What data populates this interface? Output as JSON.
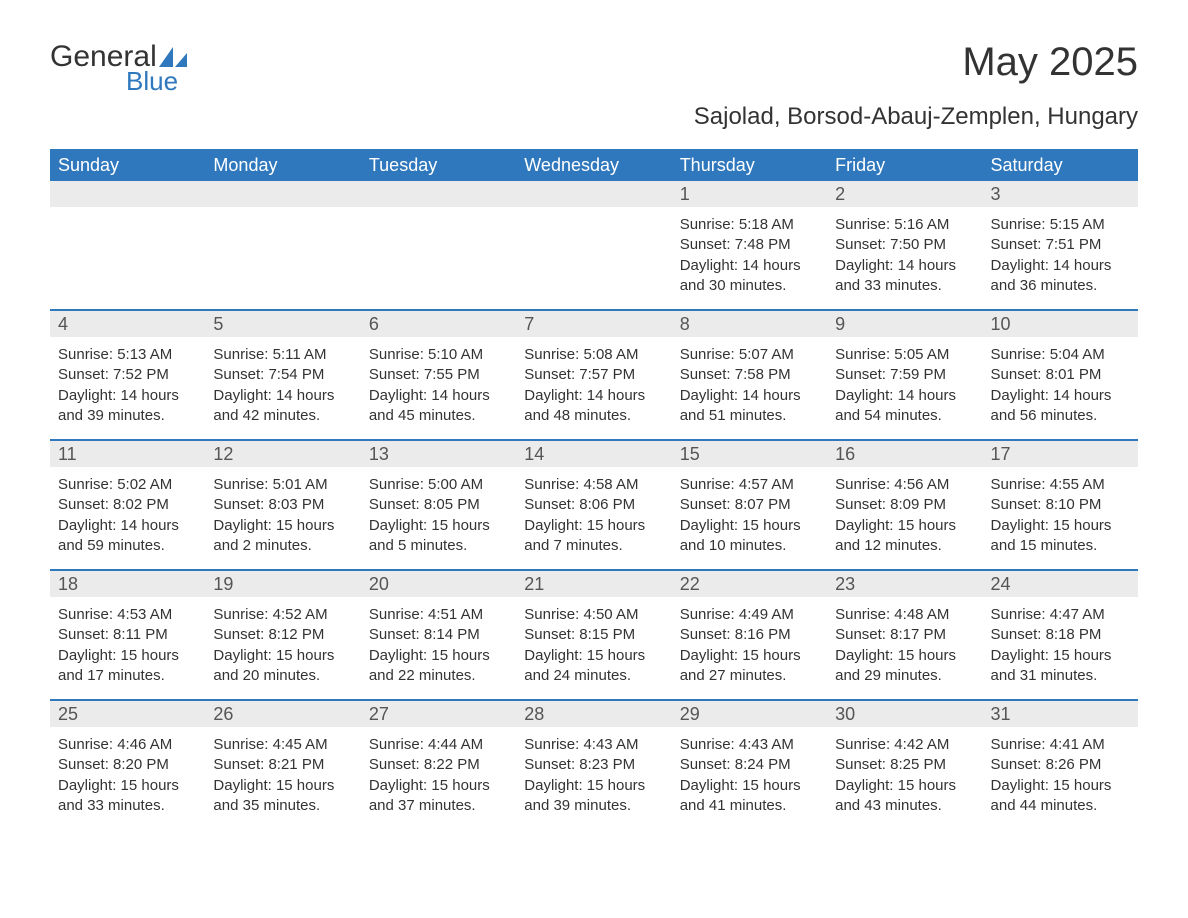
{
  "logo": {
    "text_general": "General",
    "text_blue": "Blue",
    "sail_color": "#2f78bd"
  },
  "title": "May 2025",
  "subtitle": "Sajolad, Borsod-Abauj-Zemplen, Hungary",
  "colors": {
    "header_bg": "#2f78bd",
    "header_text": "#ffffff",
    "daynum_bg": "#ebebeb",
    "daynum_text": "#555555",
    "body_text": "#333333",
    "week_divider": "#2f78bd",
    "page_bg": "#ffffff"
  },
  "fontsize": {
    "title": 40,
    "subtitle": 24,
    "weekday": 18,
    "daynum": 18,
    "body": 15
  },
  "weekdays": [
    "Sunday",
    "Monday",
    "Tuesday",
    "Wednesday",
    "Thursday",
    "Friday",
    "Saturday"
  ],
  "days": [
    {
      "n": 1,
      "sunrise": "5:18 AM",
      "sunset": "7:48 PM",
      "daylight": "14 hours and 30 minutes."
    },
    {
      "n": 2,
      "sunrise": "5:16 AM",
      "sunset": "7:50 PM",
      "daylight": "14 hours and 33 minutes."
    },
    {
      "n": 3,
      "sunrise": "5:15 AM",
      "sunset": "7:51 PM",
      "daylight": "14 hours and 36 minutes."
    },
    {
      "n": 4,
      "sunrise": "5:13 AM",
      "sunset": "7:52 PM",
      "daylight": "14 hours and 39 minutes."
    },
    {
      "n": 5,
      "sunrise": "5:11 AM",
      "sunset": "7:54 PM",
      "daylight": "14 hours and 42 minutes."
    },
    {
      "n": 6,
      "sunrise": "5:10 AM",
      "sunset": "7:55 PM",
      "daylight": "14 hours and 45 minutes."
    },
    {
      "n": 7,
      "sunrise": "5:08 AM",
      "sunset": "7:57 PM",
      "daylight": "14 hours and 48 minutes."
    },
    {
      "n": 8,
      "sunrise": "5:07 AM",
      "sunset": "7:58 PM",
      "daylight": "14 hours and 51 minutes."
    },
    {
      "n": 9,
      "sunrise": "5:05 AM",
      "sunset": "7:59 PM",
      "daylight": "14 hours and 54 minutes."
    },
    {
      "n": 10,
      "sunrise": "5:04 AM",
      "sunset": "8:01 PM",
      "daylight": "14 hours and 56 minutes."
    },
    {
      "n": 11,
      "sunrise": "5:02 AM",
      "sunset": "8:02 PM",
      "daylight": "14 hours and 59 minutes."
    },
    {
      "n": 12,
      "sunrise": "5:01 AM",
      "sunset": "8:03 PM",
      "daylight": "15 hours and 2 minutes."
    },
    {
      "n": 13,
      "sunrise": "5:00 AM",
      "sunset": "8:05 PM",
      "daylight": "15 hours and 5 minutes."
    },
    {
      "n": 14,
      "sunrise": "4:58 AM",
      "sunset": "8:06 PM",
      "daylight": "15 hours and 7 minutes."
    },
    {
      "n": 15,
      "sunrise": "4:57 AM",
      "sunset": "8:07 PM",
      "daylight": "15 hours and 10 minutes."
    },
    {
      "n": 16,
      "sunrise": "4:56 AM",
      "sunset": "8:09 PM",
      "daylight": "15 hours and 12 minutes."
    },
    {
      "n": 17,
      "sunrise": "4:55 AM",
      "sunset": "8:10 PM",
      "daylight": "15 hours and 15 minutes."
    },
    {
      "n": 18,
      "sunrise": "4:53 AM",
      "sunset": "8:11 PM",
      "daylight": "15 hours and 17 minutes."
    },
    {
      "n": 19,
      "sunrise": "4:52 AM",
      "sunset": "8:12 PM",
      "daylight": "15 hours and 20 minutes."
    },
    {
      "n": 20,
      "sunrise": "4:51 AM",
      "sunset": "8:14 PM",
      "daylight": "15 hours and 22 minutes."
    },
    {
      "n": 21,
      "sunrise": "4:50 AM",
      "sunset": "8:15 PM",
      "daylight": "15 hours and 24 minutes."
    },
    {
      "n": 22,
      "sunrise": "4:49 AM",
      "sunset": "8:16 PM",
      "daylight": "15 hours and 27 minutes."
    },
    {
      "n": 23,
      "sunrise": "4:48 AM",
      "sunset": "8:17 PM",
      "daylight": "15 hours and 29 minutes."
    },
    {
      "n": 24,
      "sunrise": "4:47 AM",
      "sunset": "8:18 PM",
      "daylight": "15 hours and 31 minutes."
    },
    {
      "n": 25,
      "sunrise": "4:46 AM",
      "sunset": "8:20 PM",
      "daylight": "15 hours and 33 minutes."
    },
    {
      "n": 26,
      "sunrise": "4:45 AM",
      "sunset": "8:21 PM",
      "daylight": "15 hours and 35 minutes."
    },
    {
      "n": 27,
      "sunrise": "4:44 AM",
      "sunset": "8:22 PM",
      "daylight": "15 hours and 37 minutes."
    },
    {
      "n": 28,
      "sunrise": "4:43 AM",
      "sunset": "8:23 PM",
      "daylight": "15 hours and 39 minutes."
    },
    {
      "n": 29,
      "sunrise": "4:43 AM",
      "sunset": "8:24 PM",
      "daylight": "15 hours and 41 minutes."
    },
    {
      "n": 30,
      "sunrise": "4:42 AM",
      "sunset": "8:25 PM",
      "daylight": "15 hours and 43 minutes."
    },
    {
      "n": 31,
      "sunrise": "4:41 AM",
      "sunset": "8:26 PM",
      "daylight": "15 hours and 44 minutes."
    }
  ],
  "labels": {
    "sunrise": "Sunrise:",
    "sunset": "Sunset:",
    "daylight": "Daylight:"
  },
  "layout": {
    "first_day_weekday_index": 4,
    "num_weeks": 5
  }
}
